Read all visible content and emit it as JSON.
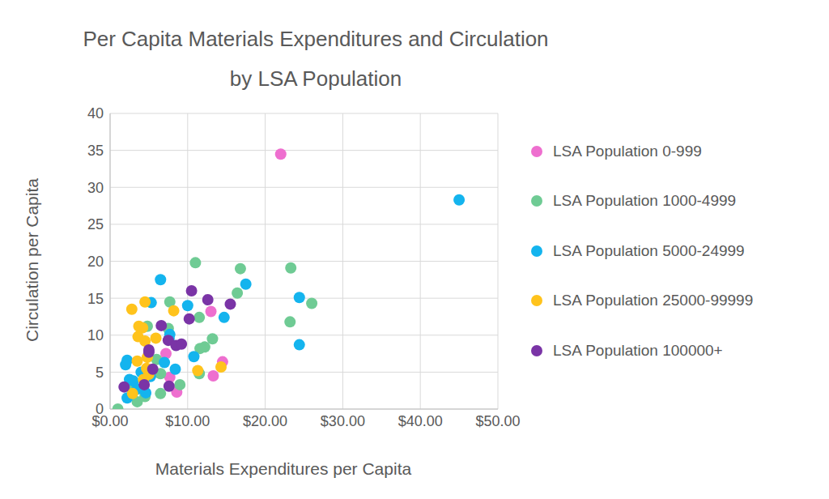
{
  "chart_data": {
    "type": "scatter",
    "title": "Per Capita Materials Expenditures and Circulation by LSA Population",
    "x_label": "Materials Expenditures per Capita",
    "y_label": "Circulation per Capita",
    "xlim": [
      0,
      50
    ],
    "xticks": [
      {
        "value": 0,
        "label": "$0.00"
      },
      {
        "value": 10,
        "label": "$10.00"
      },
      {
        "value": 20,
        "label": "$20.00"
      },
      {
        "value": 30,
        "label": "$30.00"
      },
      {
        "value": 40,
        "label": "$40.00"
      },
      {
        "value": 50,
        "label": "$50.00"
      }
    ],
    "ylim": [
      0,
      40
    ],
    "yticks": [
      0,
      5,
      10,
      15,
      20,
      25,
      30,
      35,
      40
    ],
    "grid": true,
    "legend": "right",
    "marker": "circle",
    "series": [
      {
        "name": "LSA Population 0-999",
        "color": "#ee6fcf",
        "x": [
          22,
          13,
          14.5,
          13.3,
          8.6,
          7.7,
          7.2
        ],
        "values": [
          34.5,
          13.2,
          6.4,
          4.5,
          2.3,
          4.3,
          7.5
        ]
      },
      {
        "name": "LSA Population 1000-4999",
        "color": "#6fcb94",
        "x": [
          1,
          11,
          16.8,
          23.3,
          26,
          23.2,
          16.4,
          11.5,
          13.2,
          12.2,
          11.6,
          11.5,
          9,
          6.5,
          7.7,
          7.5,
          4.8,
          3.5,
          4.5,
          5.5,
          6,
          2.5,
          5,
          6.5
        ],
        "values": [
          0,
          19.8,
          19,
          19.1,
          14.3,
          11.8,
          15.7,
          12.4,
          9.5,
          8.4,
          8.2,
          4.8,
          3.3,
          2.1,
          14.5,
          10.9,
          11.2,
          1,
          1.7,
          4.9,
          6.7,
          3,
          5.2,
          4.8
        ]
      },
      {
        "name": "LSA Population 5000-24999",
        "color": "#14b4ee",
        "x": [
          45,
          6.5,
          17.5,
          24.4,
          24.4,
          14.7,
          10,
          5.3,
          7.7,
          7.6,
          10.8,
          8.4,
          7,
          2.2,
          2,
          2.5,
          2.2,
          3,
          4,
          5.2,
          4.6,
          3.5
        ],
        "values": [
          28.3,
          17.5,
          16.9,
          15.1,
          8.7,
          12.4,
          14,
          14.4,
          10.1,
          9.5,
          7.1,
          5.4,
          6.3,
          6.6,
          6,
          4,
          1.5,
          3.8,
          5,
          4.4,
          2.2,
          2.7
        ]
      },
      {
        "name": "LSA Population 25000-99999",
        "color": "#ffc31c",
        "x": [
          2.8,
          4.5,
          8.2,
          3.7,
          4.2,
          3.6,
          4.5,
          5.9,
          4.8,
          3.5,
          4.7,
          5,
          4.3,
          2.9,
          11.3,
          14.3
        ],
        "values": [
          13.5,
          14.5,
          13.3,
          11.2,
          11,
          9.8,
          9.2,
          9.6,
          7,
          6.5,
          5.5,
          4.7,
          4,
          2.1,
          5.2,
          5.7
        ]
      },
      {
        "name": "LSA Population 100000+",
        "color": "#7a34a6",
        "x": [
          10.5,
          12.6,
          15.5,
          10.2,
          6.6,
          7.5,
          8.5,
          9.2,
          5,
          5.5,
          4.4,
          7.6,
          1.8,
          5
        ],
        "values": [
          16,
          14.8,
          14.2,
          12.2,
          11.3,
          9.3,
          8.6,
          8.8,
          8,
          5.4,
          3.3,
          3.1,
          3,
          7.7
        ]
      }
    ]
  }
}
